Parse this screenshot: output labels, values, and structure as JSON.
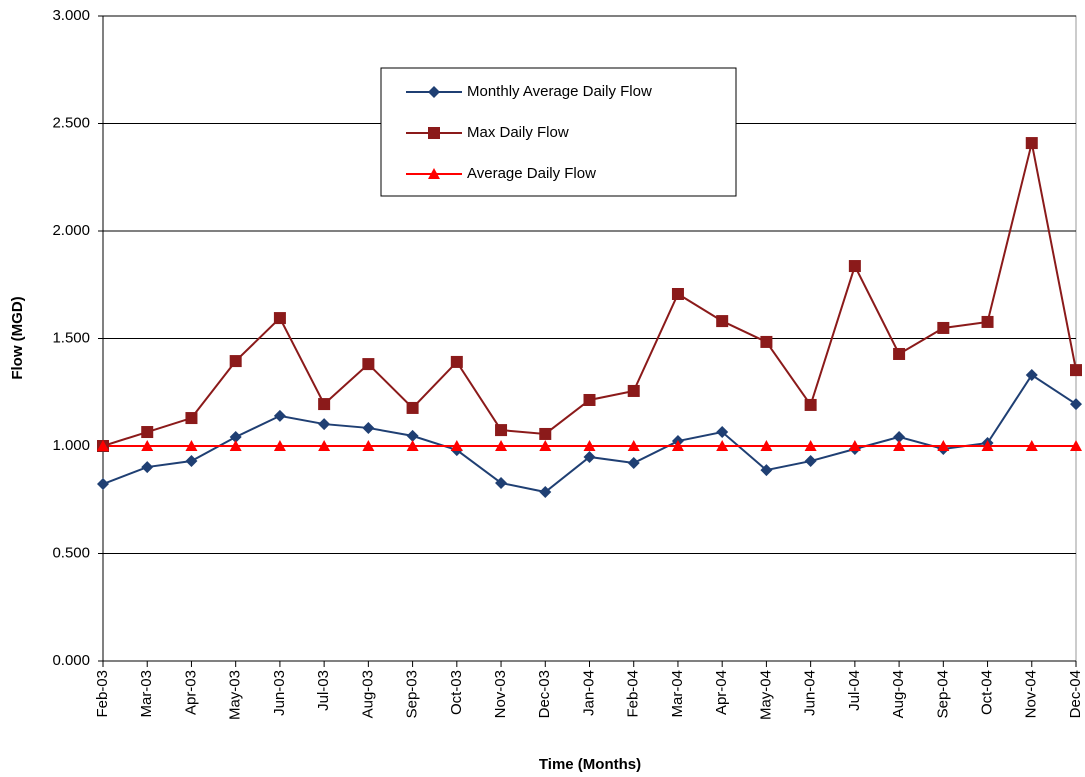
{
  "chart_data": {
    "type": "line",
    "xlabel": "Time (Months)",
    "ylabel": "Flow (MGD)",
    "categories": [
      "Feb-03",
      "Mar-03",
      "Apr-03",
      "May-03",
      "Jun-03",
      "Jul-03",
      "Aug-03",
      "Sep-03",
      "Oct-03",
      "Nov-03",
      "Dec-03",
      "Jan-04",
      "Feb-04",
      "Mar-04",
      "Apr-04",
      "May-04",
      "Jun-04",
      "Jul-04",
      "Aug-04",
      "Sep-04",
      "Oct-04",
      "Nov-04",
      "Dec-04"
    ],
    "series": [
      {
        "name": "Monthly Average Daily Flow",
        "color": "#1f3f73",
        "marker": "diamond",
        "values": [
          0.823,
          0.902,
          0.93,
          1.042,
          1.14,
          1.102,
          1.084,
          1.047,
          0.981,
          0.828,
          0.786,
          0.949,
          0.921,
          1.023,
          1.065,
          0.888,
          0.93,
          0.986,
          1.042,
          0.986,
          1.014,
          1.33,
          1.195
        ]
      },
      {
        "name": "Max Daily Flow",
        "color": "#8b1a1a",
        "marker": "square",
        "values": [
          1.0,
          1.065,
          1.13,
          1.395,
          1.595,
          1.195,
          1.381,
          1.177,
          1.391,
          1.074,
          1.056,
          1.214,
          1.256,
          1.707,
          1.581,
          1.484,
          1.191,
          1.837,
          1.428,
          1.549,
          1.577,
          2.409,
          1.353
        ]
      },
      {
        "name": "Average Daily Flow",
        "color": "#ff0000",
        "marker": "triangle",
        "values": [
          1,
          1,
          1,
          1,
          1,
          1,
          1,
          1,
          1,
          1,
          1,
          1,
          1,
          1,
          1,
          1,
          1,
          1,
          1,
          1,
          1,
          1,
          1
        ]
      }
    ],
    "ylim": [
      0,
      3
    ],
    "yticks": [
      {
        "value": 0,
        "label": "0.000"
      },
      {
        "value": 0.5,
        "label": "0.500"
      },
      {
        "value": 1,
        "label": "1.000"
      },
      {
        "value": 1.5,
        "label": "1.500"
      },
      {
        "value": 2,
        "label": "2.000"
      },
      {
        "value": 2.5,
        "label": "2.500"
      },
      {
        "value": 3,
        "label": "3.000"
      }
    ],
    "grid": true,
    "legend": "top"
  }
}
